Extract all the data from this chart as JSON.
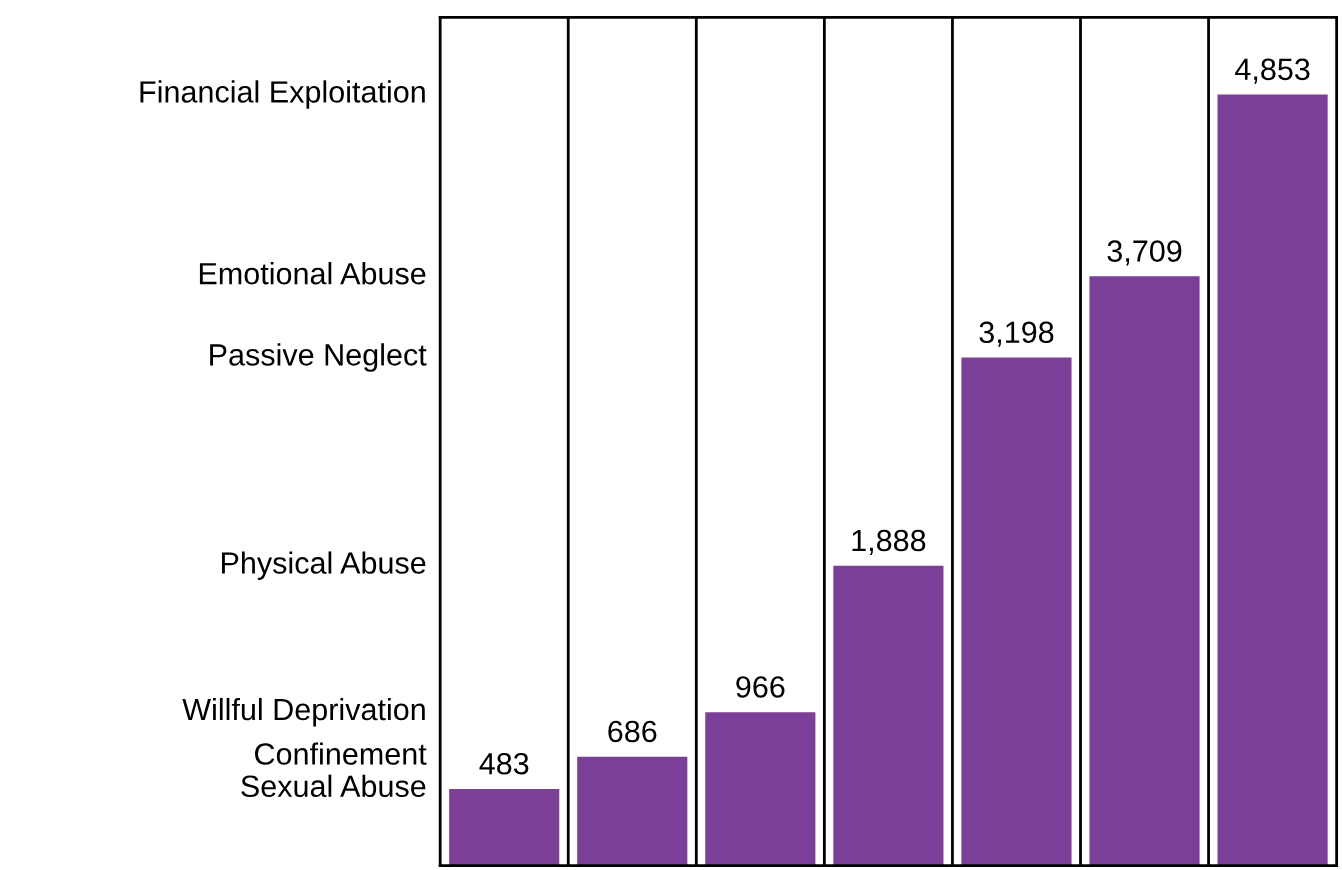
{
  "chart_data": {
    "type": "bar",
    "categories": [
      null,
      null,
      null,
      null,
      null,
      null,
      null
    ],
    "values": [
      483,
      686,
      966,
      1888,
      3198,
      3709,
      4853
    ],
    "value_labels": [
      "483",
      "686",
      "966",
      "1,888",
      "3,198",
      "3,709",
      "4,853"
    ],
    "annotations": [
      "Sexual Abuse",
      "Confinement",
      "Willful Deprivation",
      "Physical Abuse",
      "Passive Neglect",
      "Emotional Abuse",
      "Financial Exploitation"
    ],
    "color": "#7b3f98",
    "grid": "x",
    "tick_labels": false
  }
}
